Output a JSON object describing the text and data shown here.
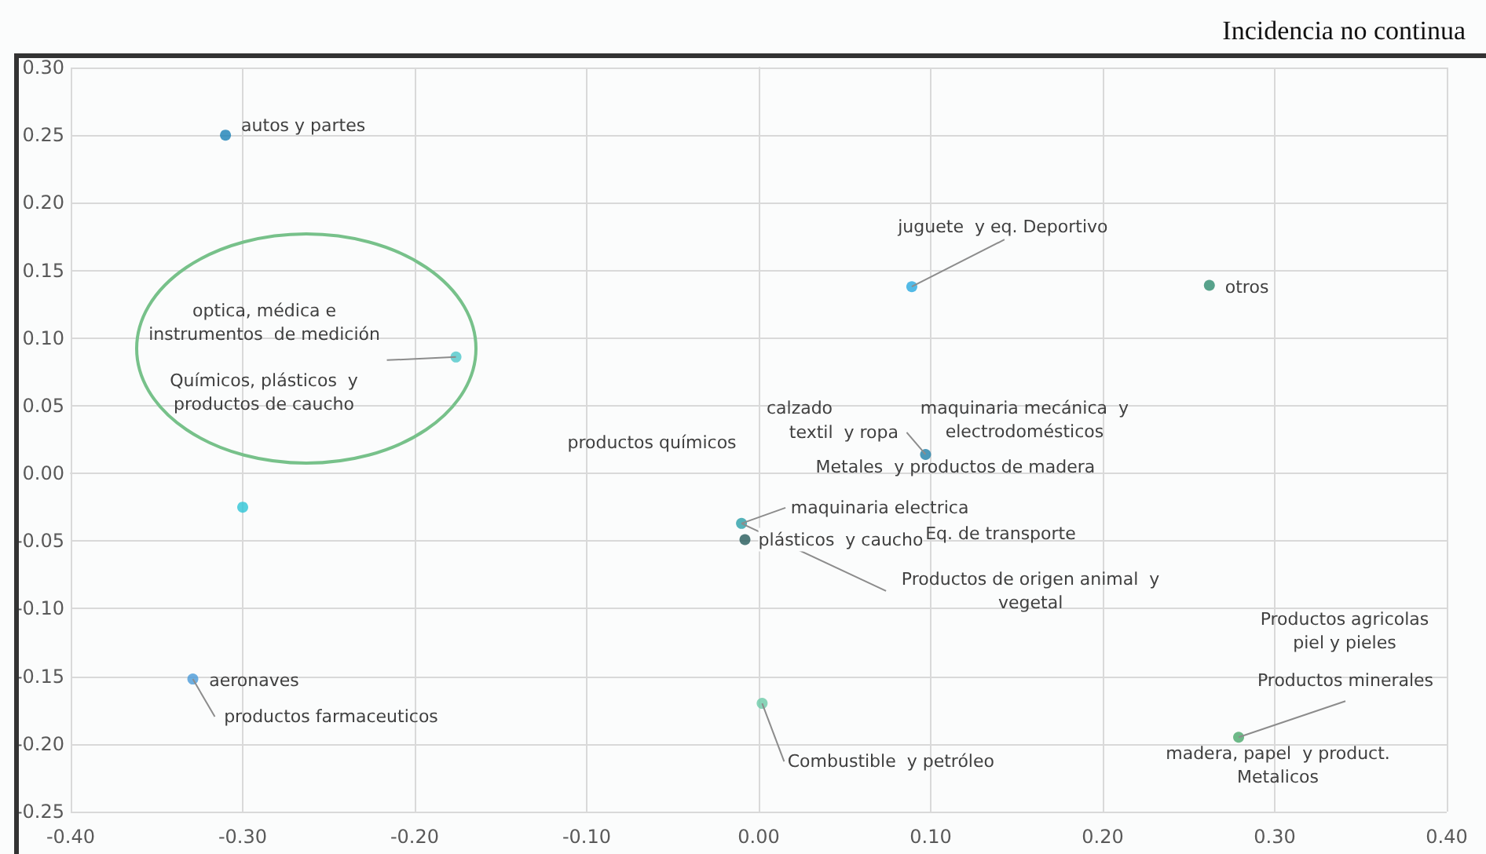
{
  "chart_data": {
    "type": "scatter",
    "title": "Incidencia no continua",
    "xlim": [
      -0.4,
      0.4
    ],
    "xticks": [
      {
        "value": -0.4,
        "label": "-0.40"
      },
      {
        "value": -0.3,
        "label": "-0.30"
      },
      {
        "value": -0.2,
        "label": "-0.20"
      },
      {
        "value": -0.1,
        "label": "-0.10"
      },
      {
        "value": 0,
        "label": "0.00"
      },
      {
        "value": 0.1,
        "label": "0.10"
      },
      {
        "value": 0.2,
        "label": "0.20"
      },
      {
        "value": 0.3,
        "label": "0.30"
      },
      {
        "value": 0.4,
        "label": "0.40"
      }
    ],
    "ylim": [
      -0.25,
      0.3
    ],
    "yticks": [
      {
        "value": -0.25,
        "label": "-0.25"
      },
      {
        "value": -0.2,
        "label": "-0.20"
      },
      {
        "value": -0.15,
        "label": "-0.15"
      },
      {
        "value": -0.1,
        "label": "-0.10"
      },
      {
        "value": -0.05,
        "label": "-0.05"
      },
      {
        "value": 0,
        "label": "0.00"
      },
      {
        "value": 0.05,
        "label": "0.05"
      },
      {
        "value": 0.1,
        "label": "0.10"
      },
      {
        "value": 0.15,
        "label": "0.15"
      },
      {
        "value": 0.2,
        "label": "0.20"
      },
      {
        "value": 0.25,
        "label": "0.25"
      },
      {
        "value": 0.3,
        "label": "0.30"
      }
    ],
    "grid": true,
    "marker": "circle",
    "series": [
      {
        "color": "#1a7fb5",
        "x": [
          -0.31
        ],
        "values": [
          0.25
        ]
      },
      {
        "color": "#4fc7c9",
        "x": [
          -0.176
        ],
        "values": [
          0.086
        ]
      },
      {
        "color": "#2ec4d6",
        "x": [
          -0.3
        ],
        "values": [
          -0.025
        ]
      },
      {
        "color": "#29a9e0",
        "x": [
          0.089
        ],
        "values": [
          0.138
        ]
      },
      {
        "color": "#2e8b6e",
        "x": [
          0.262
        ],
        "values": [
          0.139
        ]
      },
      {
        "color": "#1f7fa8",
        "x": [
          0.097
        ],
        "values": [
          0.014
        ]
      },
      {
        "color": "#2a9fa8",
        "x": [
          -0.01
        ],
        "values": [
          -0.037
        ]
      },
      {
        "color": "#255a5a",
        "x": [
          -0.008
        ],
        "values": [
          -0.049
        ]
      },
      {
        "color": "#4a9ad8",
        "x": [
          -0.329
        ],
        "values": [
          -0.152
        ]
      },
      {
        "color": "#6ccaa8",
        "x": [
          0.002
        ],
        "values": [
          -0.17
        ]
      },
      {
        "color": "#4aa86a",
        "x": [
          0.279
        ],
        "values": [
          -0.195
        ]
      }
    ],
    "annotations": [
      {
        "text": "autos y partes",
        "x": -0.31,
        "y": 0.25
      },
      {
        "text": "optica, médica e\ninstrumentos  de medición",
        "x": -0.176,
        "y": 0.086
      },
      "Químicos, plásticos  y\nproductos de caucho",
      "productos químicos",
      {
        "text": "juguete  y eq. Deportivo",
        "x": 0.089,
        "y": 0.138
      },
      {
        "text": "otros",
        "x": 0.262,
        "y": 0.139
      },
      "calzado",
      {
        "text": "textil  y ropa",
        "x": 0.097,
        "y": 0.014
      },
      {
        "text": "maquinaria mecánica  y\nelectrodomésticos",
        "x": 0.097,
        "y": 0.014
      },
      {
        "text": "Metales  y productos de madera",
        "x": 0.097,
        "y": 0.014
      },
      {
        "text": "maquinaria electrica",
        "x": -0.01,
        "y": -0.037
      },
      "Eq. de transporte",
      {
        "text": "Productos de origen animal  y\nvegetal",
        "x": -0.01,
        "y": -0.037
      },
      {
        "text": "plásticos  y caucho",
        "x": -0.008,
        "y": -0.049
      },
      {
        "text": "aeronaves",
        "x": -0.329,
        "y": -0.152
      },
      {
        "text": "productos farmaceuticos",
        "x": -0.329,
        "y": -0.152
      },
      {
        "text": "Combustible  y petróleo",
        "x": 0.002,
        "y": -0.17
      },
      "Productos agricolas\npiel y pieles",
      {
        "text": "Productos minerales",
        "x": 0.279,
        "y": -0.195
      },
      {
        "text": "madera, papel  y product.\nMetalicos",
        "x": 0.279,
        "y": -0.195
      }
    ]
  }
}
